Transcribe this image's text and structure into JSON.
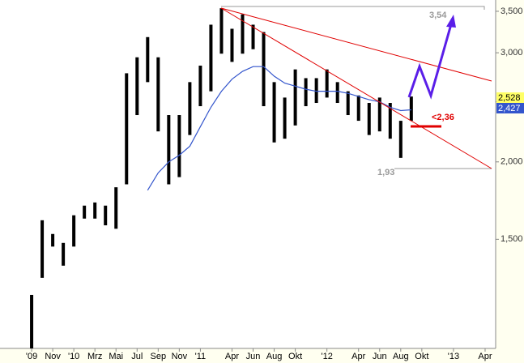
{
  "chart_data": {
    "type": "ohlc",
    "x": [
      "2009-09",
      "2009-10",
      "2009-11",
      "2009-12",
      "2010-01",
      "2010-02",
      "2010-03",
      "2010-04",
      "2010-05",
      "2010-06",
      "2010-07",
      "2010-08",
      "2010-09",
      "2010-10",
      "2010-11",
      "2010-12",
      "2011-01",
      "2011-02",
      "2011-03",
      "2011-04",
      "2011-05",
      "2011-06",
      "2011-07",
      "2011-08",
      "2011-09",
      "2011-10",
      "2011-11",
      "2011-12",
      "2012-01",
      "2012-02",
      "2012-03",
      "2012-04",
      "2012-05",
      "2012-06",
      "2012-07",
      "2012-08",
      "2012-09"
    ],
    "high": [
      1.22,
      1.61,
      1.53,
      1.48,
      1.64,
      1.7,
      1.72,
      1.7,
      1.82,
      2.78,
      2.95,
      3.18,
      2.95,
      2.38,
      2.38,
      2.69,
      2.86,
      3.33,
      3.54,
      3.28,
      3.46,
      3.33,
      3.24,
      2.69,
      2.54,
      2.82,
      2.73,
      2.73,
      2.82,
      2.69,
      2.6,
      2.56,
      2.49,
      2.54,
      2.49,
      2.33,
      2.55
    ],
    "low": [
      1.0,
      1.3,
      1.46,
      1.36,
      1.46,
      1.62,
      1.62,
      1.58,
      1.56,
      1.84,
      2.38,
      2.69,
      2.24,
      1.84,
      1.89,
      2.21,
      2.46,
      2.6,
      2.99,
      2.9,
      2.99,
      3.04,
      2.46,
      2.15,
      2.18,
      2.29,
      2.46,
      2.49,
      2.54,
      2.49,
      2.38,
      2.33,
      2.21,
      2.24,
      2.18,
      2.03,
      2.33
    ],
    "color": "#000000",
    "moving_average": {
      "color": "#3355cc",
      "values": [
        null,
        null,
        null,
        null,
        null,
        null,
        null,
        null,
        null,
        null,
        null,
        1.8,
        1.92,
        2.0,
        2.05,
        2.12,
        2.28,
        2.45,
        2.6,
        2.72,
        2.8,
        2.85,
        2.85,
        2.75,
        2.68,
        2.65,
        2.62,
        2.6,
        2.6,
        2.6,
        2.58,
        2.55,
        2.52,
        2.5,
        2.45,
        2.42,
        2.427
      ]
    },
    "xlim": [
      "2009-06",
      "2013-05"
    ],
    "xticks": [
      {
        "value": "2009-09",
        "label": "'09"
      },
      {
        "value": "2009-11",
        "label": "Nov"
      },
      {
        "value": "2010-01",
        "label": "'10"
      },
      {
        "value": "2010-03",
        "label": "Mrz"
      },
      {
        "value": "2010-05",
        "label": "Mai"
      },
      {
        "value": "2010-07",
        "label": "Jul"
      },
      {
        "value": "2010-09",
        "label": "Sep"
      },
      {
        "value": "2010-11",
        "label": "Nov"
      },
      {
        "value": "2011-01",
        "label": "'11"
      },
      {
        "value": "2011-04",
        "label": "Apr"
      },
      {
        "value": "2011-06",
        "label": "Jun"
      },
      {
        "value": "2011-08",
        "label": "Aug"
      },
      {
        "value": "2011-10",
        "label": "Okt"
      },
      {
        "value": "2012-01",
        "label": "'12"
      },
      {
        "value": "2012-04",
        "label": "Apr"
      },
      {
        "value": "2012-06",
        "label": "Jun"
      },
      {
        "value": "2012-08",
        "label": "Aug"
      },
      {
        "value": "2012-10",
        "label": "Okt"
      },
      {
        "value": "2013-01",
        "label": "'13"
      },
      {
        "value": "2013-04",
        "label": "Apr"
      }
    ],
    "ylim": [
      1.0,
      3.65
    ],
    "yticks": [
      {
        "value": 1.5,
        "label": "1,500"
      },
      {
        "value": 2.0,
        "label": "2,000"
      },
      {
        "value": 2.5,
        "label": "2,500"
      },
      {
        "value": 3.0,
        "label": "3,000"
      },
      {
        "value": 3.5,
        "label": "3,500"
      }
    ],
    "log_scale": true,
    "annotations": [
      "3,54",
      "<2,36",
      "1,93"
    ],
    "price_label": "2,528",
    "average_label": "2,427"
  }
}
